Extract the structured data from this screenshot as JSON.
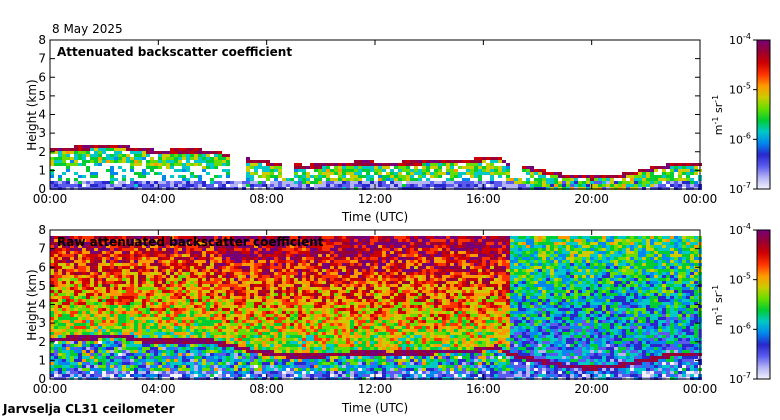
{
  "header": {
    "date": "8 May 2025"
  },
  "footer": {
    "instrument": "Jarvselja CL31 ceilometer"
  },
  "colorbar": {
    "unit_main": "m",
    "unit_exp1": "-1",
    "unit_mid": " sr",
    "unit_exp2": "-1",
    "ticks": [
      {
        "base": "10",
        "exp": "-4",
        "value": 0.0001
      },
      {
        "base": "10",
        "exp": "-5",
        "value": 1e-05
      },
      {
        "base": "10",
        "exp": "-6",
        "value": 1e-06
      },
      {
        "base": "10",
        "exp": "-7",
        "value": 1e-07
      }
    ],
    "colors": [
      "#f2f2ff",
      "#b4b4f4",
      "#5a5aee",
      "#2828cc",
      "#0088ee",
      "#00c8c8",
      "#00cc33",
      "#66dd00",
      "#cccc00",
      "#ff9900",
      "#ff3300",
      "#cc0000",
      "#990033",
      "#770077"
    ]
  },
  "chart_data": [
    {
      "type": "heatmap",
      "title": "Attenuated backscatter coefficient",
      "xlabel": "Time (UTC)",
      "ylabel": "Height (km)",
      "xlim": [
        0,
        24
      ],
      "ylim": [
        0,
        8
      ],
      "x_ticks": [
        "00:00",
        "04:00",
        "08:00",
        "12:00",
        "16:00",
        "20:00",
        "00:00"
      ],
      "y_ticks": [
        "0",
        "1",
        "2",
        "3",
        "4",
        "5",
        "6",
        "7",
        "8"
      ],
      "color_scale": "log",
      "color_range": [
        1e-07,
        0.0001
      ],
      "cloud_base_km": [
        {
          "t": 0.0,
          "h": 2.1
        },
        {
          "t": 1.0,
          "h": 2.2
        },
        {
          "t": 2.0,
          "h": 2.25
        },
        {
          "t": 2.8,
          "h": 2.25
        },
        {
          "t": 3.2,
          "h": 2.1
        },
        {
          "t": 4.0,
          "h": 2.0
        },
        {
          "t": 5.0,
          "h": 2.05
        },
        {
          "t": 6.0,
          "h": 2.0
        },
        {
          "t": 6.6,
          "h": 1.8
        },
        {
          "t": 7.5,
          "h": 1.5
        },
        {
          "t": 8.5,
          "h": 1.3
        },
        {
          "t": 9.5,
          "h": 1.2
        },
        {
          "t": 10.5,
          "h": 1.3
        },
        {
          "t": 11.5,
          "h": 1.4
        },
        {
          "t": 12.5,
          "h": 1.35
        },
        {
          "t": 13.5,
          "h": 1.4
        },
        {
          "t": 14.5,
          "h": 1.45
        },
        {
          "t": 15.5,
          "h": 1.5
        },
        {
          "t": 16.5,
          "h": 1.7
        },
        {
          "t": 17.0,
          "h": 1.3
        },
        {
          "t": 18.0,
          "h": 1.0
        },
        {
          "t": 19.0,
          "h": 0.7
        },
        {
          "t": 20.0,
          "h": 0.6
        },
        {
          "t": 21.0,
          "h": 0.7
        },
        {
          "t": 22.0,
          "h": 1.0
        },
        {
          "t": 23.0,
          "h": 1.3
        },
        {
          "t": 24.0,
          "h": 1.3
        }
      ],
      "gaps_hours": [
        [
          6.6,
          7.2
        ],
        [
          8.5,
          9.0
        ],
        [
          17.0,
          17.5
        ]
      ]
    },
    {
      "type": "heatmap",
      "title": "Raw attenuated backscatter coefficient",
      "xlabel": "Time (UTC)",
      "ylabel": "Height (km)",
      "xlim": [
        0,
        24
      ],
      "ylim": [
        0,
        8
      ],
      "x_ticks": [
        "00:00",
        "04:00",
        "08:00",
        "12:00",
        "16:00",
        "20:00",
        "00:00"
      ],
      "y_ticks": [
        "0",
        "1",
        "2",
        "3",
        "4",
        "5",
        "6",
        "7",
        "8"
      ],
      "color_scale": "log",
      "color_range": [
        1e-07,
        0.0001
      ],
      "data_top_km": 7.7,
      "cloud_base_km": [
        {
          "t": 0.0,
          "h": 2.1
        },
        {
          "t": 1.0,
          "h": 2.2
        },
        {
          "t": 2.0,
          "h": 2.25
        },
        {
          "t": 2.8,
          "h": 2.25
        },
        {
          "t": 3.2,
          "h": 2.1
        },
        {
          "t": 4.0,
          "h": 2.0
        },
        {
          "t": 5.0,
          "h": 2.05
        },
        {
          "t": 6.0,
          "h": 2.0
        },
        {
          "t": 6.6,
          "h": 1.8
        },
        {
          "t": 7.5,
          "h": 1.5
        },
        {
          "t": 8.5,
          "h": 1.3
        },
        {
          "t": 9.5,
          "h": 1.2
        },
        {
          "t": 10.5,
          "h": 1.3
        },
        {
          "t": 11.5,
          "h": 1.4
        },
        {
          "t": 12.5,
          "h": 1.35
        },
        {
          "t": 13.5,
          "h": 1.4
        },
        {
          "t": 14.5,
          "h": 1.45
        },
        {
          "t": 15.5,
          "h": 1.5
        },
        {
          "t": 16.5,
          "h": 1.7
        },
        {
          "t": 17.0,
          "h": 1.3
        },
        {
          "t": 18.0,
          "h": 1.0
        },
        {
          "t": 19.0,
          "h": 0.7
        },
        {
          "t": 20.0,
          "h": 0.6
        },
        {
          "t": 21.0,
          "h": 0.7
        },
        {
          "t": 22.0,
          "h": 1.0
        },
        {
          "t": 23.0,
          "h": 1.3
        },
        {
          "t": 24.0,
          "h": 1.3
        }
      ]
    }
  ]
}
